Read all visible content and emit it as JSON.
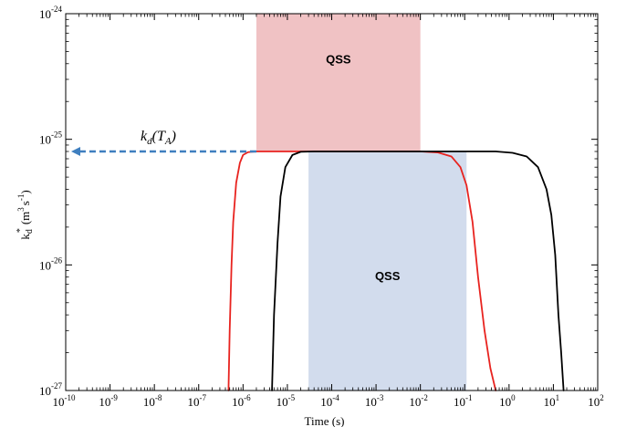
{
  "chart_data": {
    "type": "line",
    "xlabel": "Time (s)",
    "ylabel": "k_d^* (m^3 s^-1)",
    "xscale": "log",
    "yscale": "log",
    "xlim": [
      1e-10,
      100
    ],
    "ylim": [
      1e-27,
      1e-24
    ],
    "x_ticks": [
      {
        "value": 1e-10,
        "base": "10",
        "exp": "-10"
      },
      {
        "value": 1e-09,
        "base": "10",
        "exp": "-9"
      },
      {
        "value": 1e-08,
        "base": "10",
        "exp": "-8"
      },
      {
        "value": 1e-07,
        "base": "10",
        "exp": "-7"
      },
      {
        "value": 1e-06,
        "base": "10",
        "exp": "-6"
      },
      {
        "value": 1e-05,
        "base": "10",
        "exp": "-5"
      },
      {
        "value": 0.0001,
        "base": "10",
        "exp": "-4"
      },
      {
        "value": 0.001,
        "base": "10",
        "exp": "-3"
      },
      {
        "value": 0.01,
        "base": "10",
        "exp": "-2"
      },
      {
        "value": 0.1,
        "base": "10",
        "exp": "-1"
      },
      {
        "value": 1,
        "base": "10",
        "exp": "0"
      },
      {
        "value": 10,
        "base": "10",
        "exp": "1"
      },
      {
        "value": 100,
        "base": "10",
        "exp": "2"
      }
    ],
    "y_ticks": [
      {
        "value": 1e-27,
        "base": "10",
        "exp": "-27"
      },
      {
        "value": 1e-26,
        "base": "10",
        "exp": "-26"
      },
      {
        "value": 1e-25,
        "base": "10",
        "exp": "-25"
      },
      {
        "value": 1e-24,
        "base": "10",
        "exp": "-24"
      }
    ],
    "ylabel_parts": {
      "k": "k",
      "sub": "d",
      "sup": "*",
      "open": "(m",
      "cube": "3",
      "mid": "s",
      "inv": "-1",
      "close": ")"
    },
    "regions": [
      {
        "label": "QSS",
        "x": [
          2e-06,
          0.01
        ],
        "y": [
          8e-26,
          1e-24
        ],
        "color": "#f0c2c4"
      },
      {
        "label": "QSS",
        "x": [
          3e-05,
          0.11
        ],
        "y": [
          1e-27,
          8e-26
        ],
        "color": "#d2dced"
      }
    ],
    "annotation": {
      "text_main": "k",
      "text_sub": "d",
      "text_paren": "(T",
      "text_sub2": "A",
      "text_close": ")",
      "y": 8e-26,
      "x_from": 2e-06,
      "color": "#3f7fbf"
    },
    "series": [
      {
        "color": "#e8231f",
        "points": [
          [
            4.7e-07,
            1e-27
          ],
          [
            5e-07,
            3e-27
          ],
          [
            5.5e-07,
            1e-26
          ],
          [
            6e-07,
            2.2e-26
          ],
          [
            7e-07,
            4.5e-26
          ],
          [
            8.5e-07,
            6.5e-26
          ],
          [
            1e-06,
            7.5e-26
          ],
          [
            1.3e-06,
            7.9e-26
          ],
          [
            2e-06,
            8e-26
          ],
          [
            0.01,
            8e-26
          ],
          [
            0.025,
            7.85e-26
          ],
          [
            0.05,
            7.3e-26
          ],
          [
            0.08,
            6e-26
          ],
          [
            0.11,
            4.3e-26
          ],
          [
            0.15,
            2.2e-26
          ],
          [
            0.2,
            8e-27
          ],
          [
            0.28,
            3e-27
          ],
          [
            0.38,
            1.5e-27
          ],
          [
            0.5,
            1e-27
          ]
        ]
      },
      {
        "color": "#000000",
        "points": [
          [
            4.5e-06,
            1e-27
          ],
          [
            5e-06,
            4e-27
          ],
          [
            6e-06,
            1.5e-26
          ],
          [
            7e-06,
            3.5e-26
          ],
          [
            9e-06,
            6e-26
          ],
          [
            1.3e-05,
            7.5e-26
          ],
          [
            2e-05,
            7.95e-26
          ],
          [
            4e-05,
            8e-26
          ],
          [
            0.5,
            8e-26
          ],
          [
            1.2,
            7.8e-26
          ],
          [
            2.5,
            7.3e-26
          ],
          [
            4.5,
            6e-26
          ],
          [
            7,
            4e-26
          ],
          [
            9,
            2.5e-26
          ],
          [
            11,
            1.2e-26
          ],
          [
            13,
            4e-27
          ],
          [
            15,
            2e-27
          ],
          [
            17,
            1e-27
          ]
        ]
      }
    ]
  }
}
